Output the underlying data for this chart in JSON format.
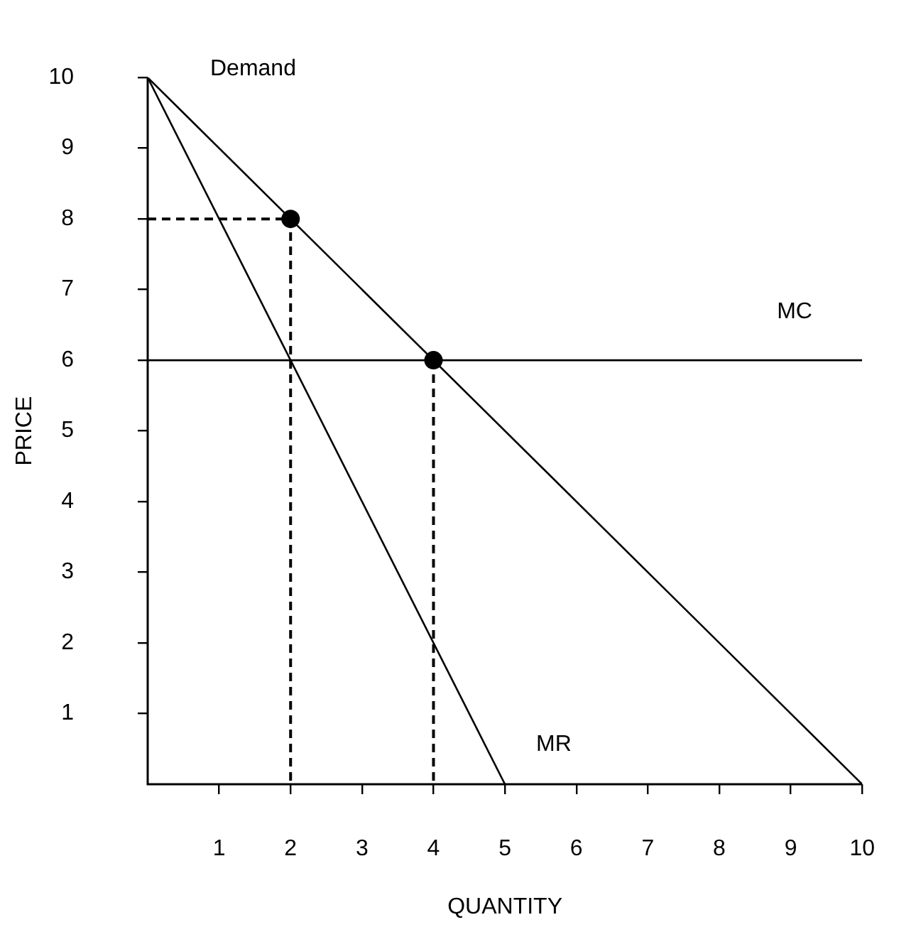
{
  "chart_data": {
    "type": "line",
    "xlabel": "QUANTITY",
    "ylabel": "PRICE",
    "xlim": [
      0,
      10
    ],
    "ylim": [
      0,
      10
    ],
    "xticks": [
      1,
      2,
      3,
      4,
      5,
      6,
      7,
      8,
      9,
      10
    ],
    "yticks": [
      1,
      2,
      3,
      4,
      5,
      6,
      7,
      8,
      9,
      10
    ],
    "grid": false,
    "legend": false,
    "marker": "none",
    "line_style": "solid",
    "series": [
      {
        "name": "Demand",
        "color": "#000000",
        "x": [
          0,
          10
        ],
        "values": [
          10,
          0
        ]
      },
      {
        "name": "MR",
        "color": "#000000",
        "x": [
          0,
          5
        ],
        "values": [
          10,
          0
        ]
      },
      {
        "name": "MC",
        "color": "#000000",
        "x": [
          0,
          10
        ],
        "values": [
          6,
          6
        ]
      },
      {
        "color": "#000000",
        "x": [
          0,
          2,
          2
        ],
        "values": [
          8,
          8,
          0
        ],
        "line_style": "dashed"
      },
      {
        "color": "#000000",
        "x": [
          4,
          4
        ],
        "values": [
          6,
          0
        ],
        "line_style": "dashed"
      },
      {
        "type": "scatter",
        "color": "#000000",
        "x": [
          2,
          4
        ],
        "values": [
          8,
          6
        ],
        "marker": "circle"
      }
    ]
  }
}
